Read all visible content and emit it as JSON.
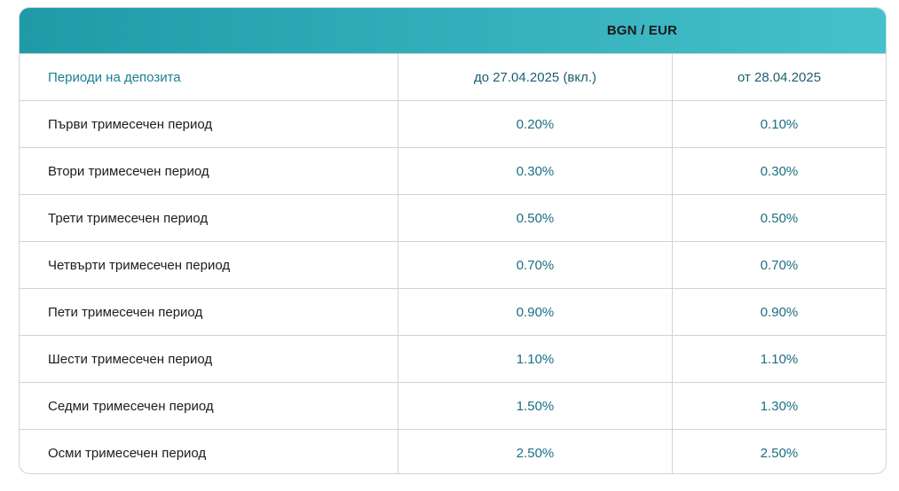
{
  "table": {
    "currency_header": "BGN / EUR",
    "columns": [
      "Периоди на депозита",
      "до 27.04.2025 (вкл.)",
      "от 28.04.2025"
    ],
    "rows": [
      [
        "Първи тримесечен период",
        "0.20%",
        "0.10%"
      ],
      [
        "Втори тримесечен период",
        "0.30%",
        "0.30%"
      ],
      [
        "Трети тримесечен период",
        "0.50%",
        "0.50%"
      ],
      [
        "Четвърти тримесечен период",
        "0.70%",
        "0.70%"
      ],
      [
        "Пети тримесечен период",
        "0.90%",
        "0.90%"
      ],
      [
        "Шести тримесечен период",
        "1.10%",
        "1.10%"
      ],
      [
        "Седми тримесечен период",
        "1.50%",
        "1.30%"
      ],
      [
        "Осми тримесечен период",
        "2.50%",
        "2.50%"
      ]
    ]
  },
  "colors": {
    "banner_start": "#1f9aa7",
    "banner_end": "#45c1cb",
    "header_text": "#1b7f93",
    "value_text": "#1b6f83"
  }
}
